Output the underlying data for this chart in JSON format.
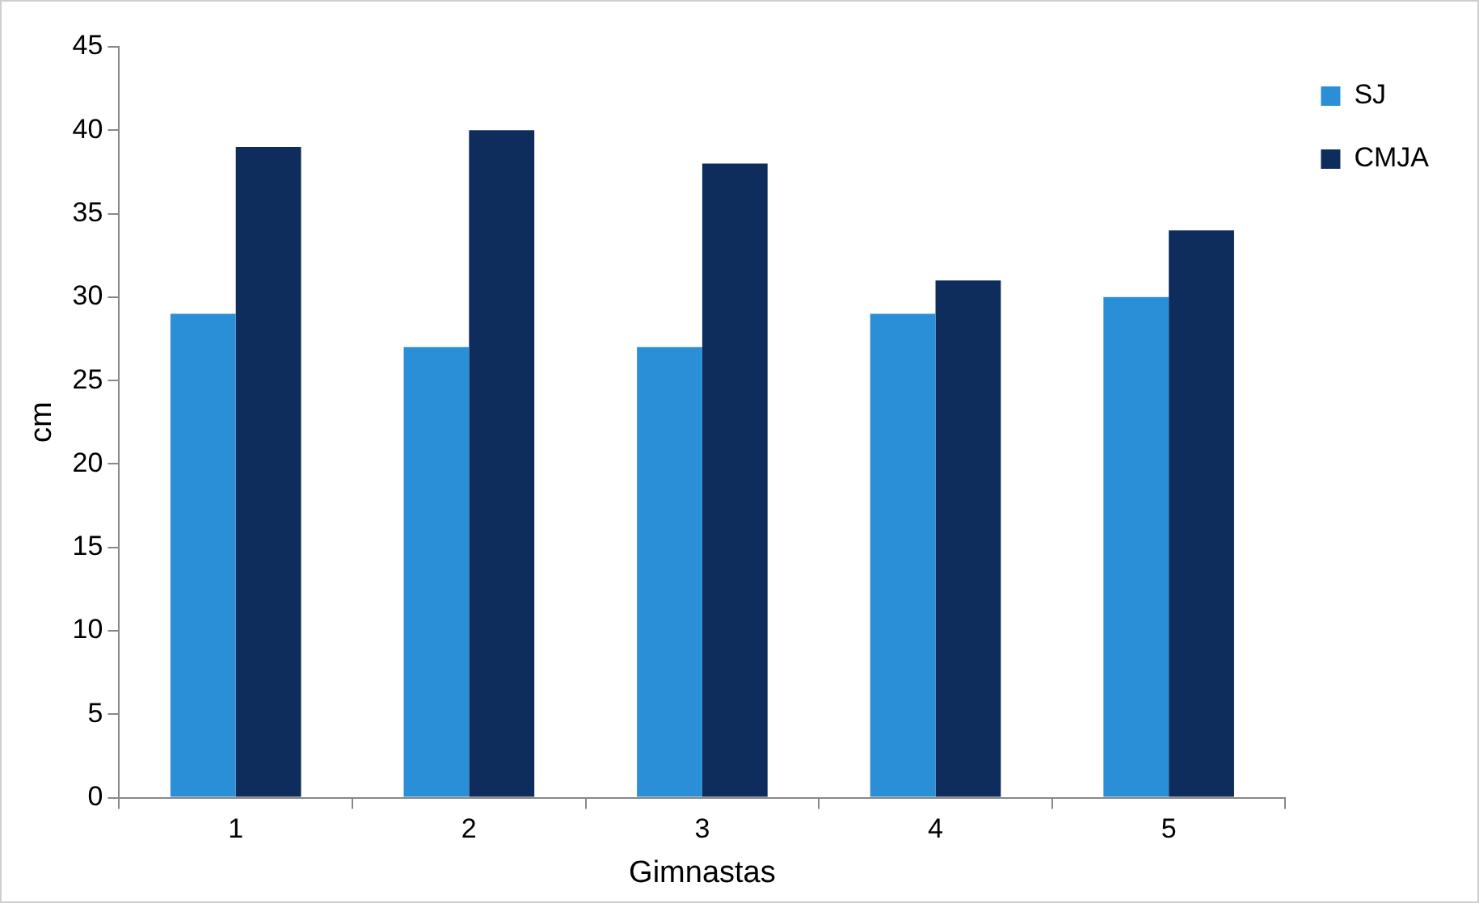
{
  "chart_data": {
    "type": "bar",
    "xlabel": "Gimnastas",
    "ylabel": "cm",
    "categories": [
      "1",
      "2",
      "3",
      "4",
      "5"
    ],
    "series": [
      {
        "name": "SJ",
        "color": "#2a8fd6",
        "values": [
          29,
          27,
          27,
          29,
          30
        ]
      },
      {
        "name": "CMJA",
        "color": "#0f2d5c",
        "values": [
          39,
          40,
          38,
          31,
          34
        ]
      }
    ],
    "ylim": [
      0,
      45
    ],
    "yticks": [
      0,
      5,
      10,
      15,
      20,
      25,
      30,
      35,
      40,
      45
    ],
    "grid": false,
    "legend": "top right"
  }
}
